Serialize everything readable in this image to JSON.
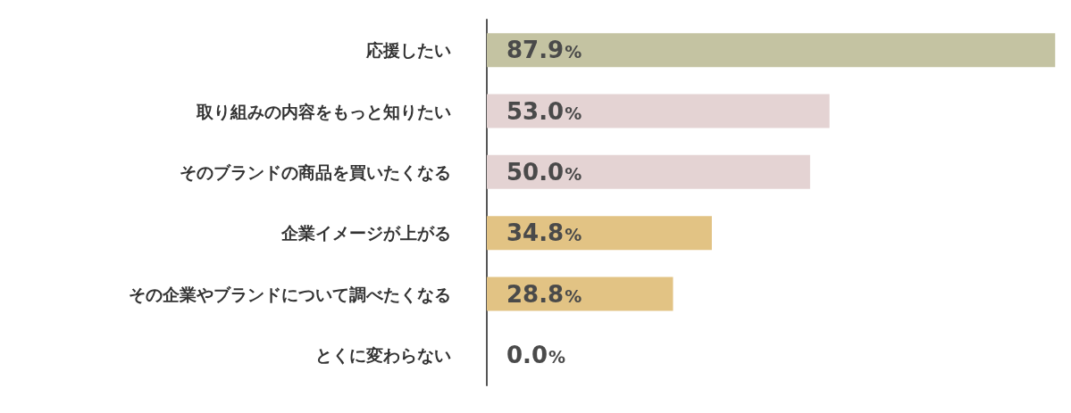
{
  "chart_data": {
    "type": "bar",
    "orientation": "horizontal",
    "categories": [
      "応援したい",
      "取り組みの内容をもっと知りたい",
      "そのブランドの商品を買いたくなる",
      "企業イメージが上がる",
      "その企業やブランドについて調べたくなる",
      "とくに変わらない"
    ],
    "values": [
      87.9,
      53.0,
      50.0,
      34.8,
      28.8,
      0.0
    ],
    "colors": [
      "#c4c3a2",
      "#e4d3d3",
      "#e4d3d3",
      "#e2c384",
      "#e2c384",
      "#e2c384"
    ],
    "value_labels": [
      "87.9%",
      "53.0%",
      "50.0%",
      "34.8%",
      "28.8%",
      "0.0%"
    ],
    "xlim": [
      0,
      88
    ],
    "tick_labels": "y"
  }
}
